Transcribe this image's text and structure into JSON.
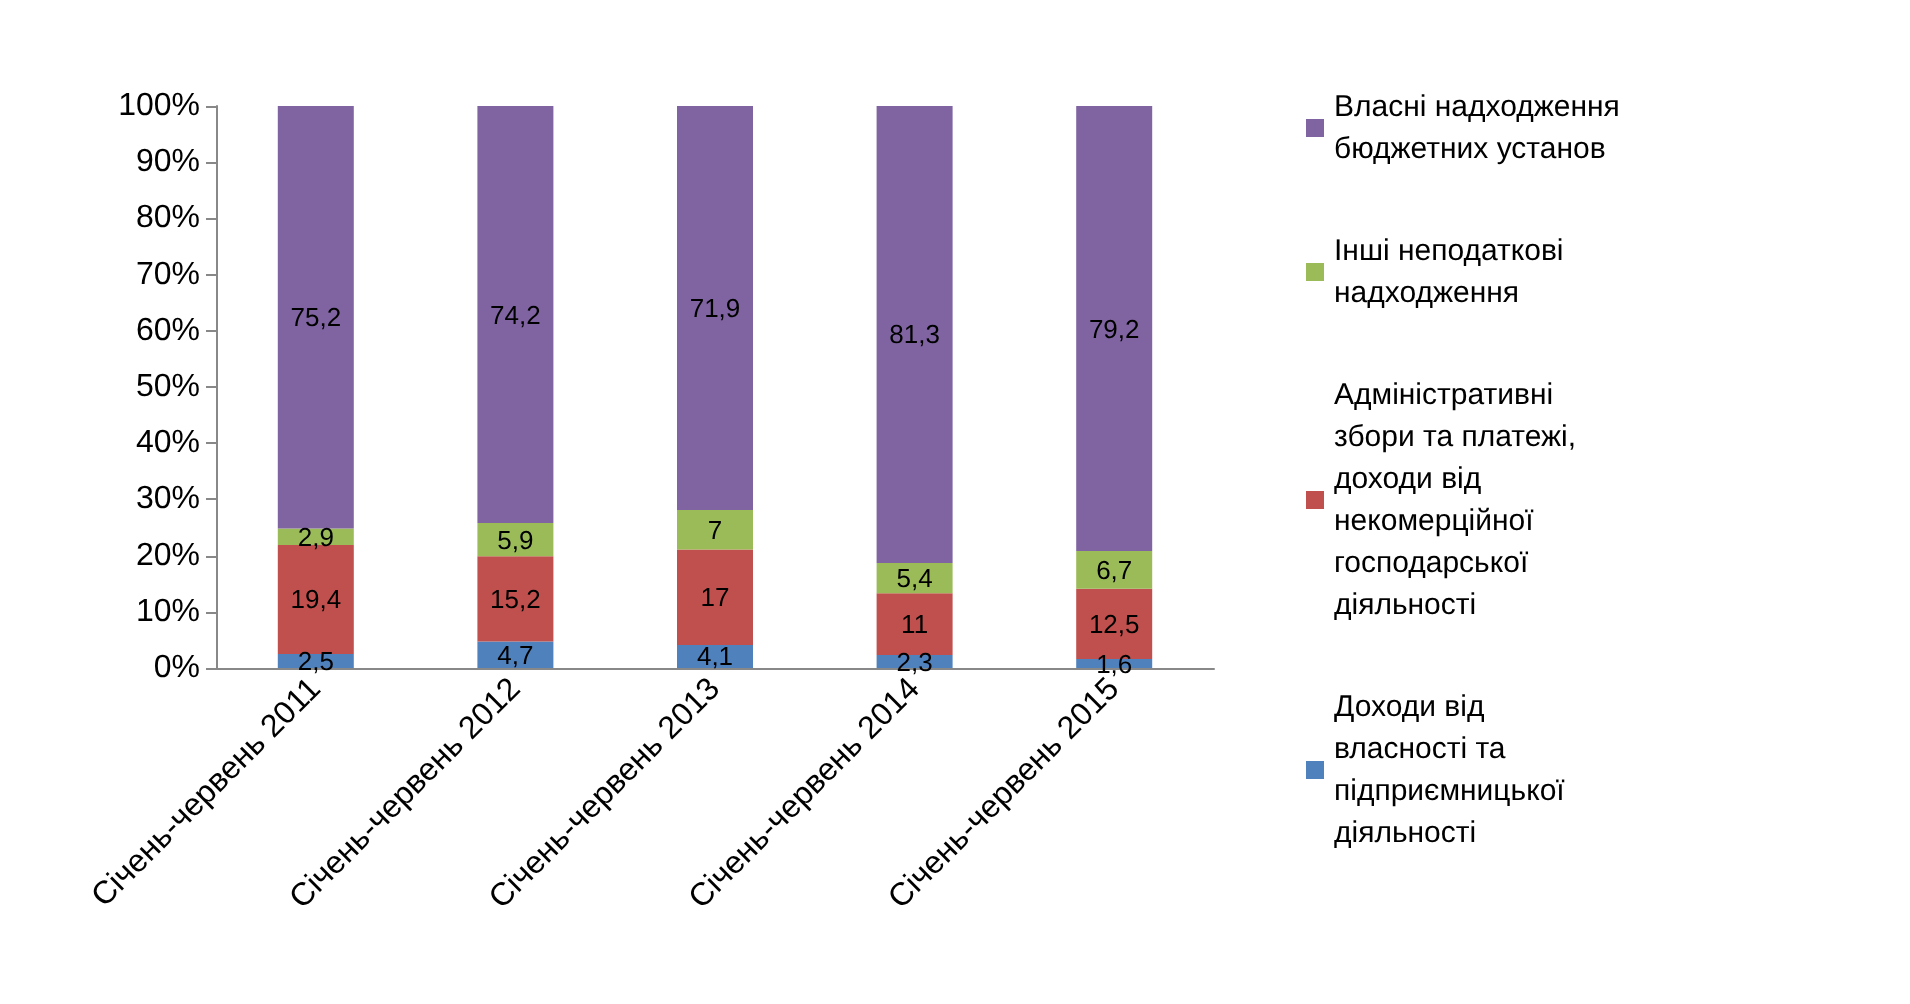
{
  "chart_data": {
    "type": "bar",
    "stacked": true,
    "categories": [
      "Січень-червень 2011",
      "Січень-червень 2012",
      "Січень-червень 2013",
      "Січень-червень 2014",
      "Січень-червень 2015"
    ],
    "series": [
      {
        "name": "Доходи від власності та підприємницької діяльності",
        "color": "#4f81bd",
        "values": [
          2.5,
          4.7,
          4.1,
          2.3,
          1.6
        ],
        "value_labels": [
          "2,5",
          "4,7",
          "4,1",
          "2,3",
          "1,6"
        ]
      },
      {
        "name": "Адміністративні збори та платежі, доходи від некомерційної господарської діяльності",
        "color": "#c0504d",
        "values": [
          19.4,
          15.2,
          17,
          11,
          12.5
        ],
        "value_labels": [
          "19,4",
          "15,2",
          "17",
          "11",
          "12,5"
        ]
      },
      {
        "name": "Інші неподаткові надходження",
        "color": "#9bbb59",
        "values": [
          2.9,
          5.9,
          7,
          5.4,
          6.7
        ],
        "value_labels": [
          "2,9",
          "5,9",
          "7",
          "5,4",
          "6,7"
        ]
      },
      {
        "name": "Власні надходження бюджетних установ",
        "color": "#8064a2",
        "values": [
          75.2,
          74.2,
          71.9,
          81.3,
          79.2
        ],
        "value_labels": [
          "75,2",
          "74,2",
          "71,9",
          "81,3",
          "79,2"
        ]
      }
    ],
    "ylim": [
      0,
      100
    ],
    "yticks": [
      {
        "value": 0,
        "label": "0%"
      },
      {
        "value": 10,
        "label": "10%"
      },
      {
        "value": 20,
        "label": "20%"
      },
      {
        "value": 30,
        "label": "30%"
      },
      {
        "value": 40,
        "label": "40%"
      },
      {
        "value": 50,
        "label": "50%"
      },
      {
        "value": 60,
        "label": "60%"
      },
      {
        "value": 70,
        "label": "70%"
      },
      {
        "value": 80,
        "label": "80%"
      },
      {
        "value": 90,
        "label": "90%"
      },
      {
        "value": 100,
        "label": "100%"
      }
    ],
    "grid": false,
    "legend": "right"
  }
}
